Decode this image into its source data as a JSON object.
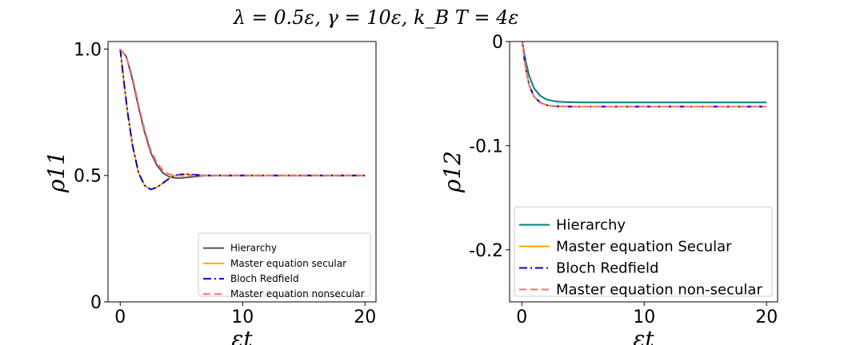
{
  "figure": {
    "suptitle": "λ = 0.5ε, γ = 10ε, k_B T = 4ε",
    "colors": {
      "hierarchy": "#008080",
      "master_secular": "#ffa500",
      "bloch_redfield": "#0000cd",
      "master_nonsecular": "#ff6e6e",
      "hierarchy_left": "#555555"
    }
  },
  "chart_data": [
    {
      "type": "line",
      "panel": "left",
      "title": "",
      "xlabel": "εt",
      "ylabel": "ρ11",
      "xlim": [
        -1,
        20.9
      ],
      "ylim": [
        0,
        1.03
      ],
      "xticks": [
        0,
        10,
        20
      ],
      "xtick_labels": [
        "0",
        "10",
        "20"
      ],
      "yticks": [
        0,
        0.5,
        1.0
      ],
      "ytick_labels": [
        "0",
        "0.5",
        "1.0"
      ],
      "grid": false,
      "legend_position": "lower-right",
      "series": [
        {
          "name": "Hierarchy",
          "style": "solid",
          "color": "#555555",
          "x": [
            0,
            0.5,
            1,
            1.5,
            2,
            2.5,
            3,
            3.5,
            4,
            4.5,
            5,
            6,
            7,
            8,
            10,
            15,
            20
          ],
          "y": [
            1.0,
            0.97,
            0.88,
            0.77,
            0.67,
            0.59,
            0.54,
            0.51,
            0.495,
            0.49,
            0.49,
            0.495,
            0.5,
            0.5,
            0.5,
            0.5,
            0.5
          ]
        },
        {
          "name": "Master equation secular",
          "style": "solid",
          "color": "#ffa500",
          "x": [
            0,
            0.3,
            0.6,
            1,
            1.5,
            2,
            2.5,
            3,
            3.5,
            4,
            4.5,
            5,
            5.5,
            6,
            7,
            8,
            10,
            15,
            20
          ],
          "y": [
            1.0,
            0.87,
            0.75,
            0.62,
            0.51,
            0.46,
            0.445,
            0.453,
            0.47,
            0.488,
            0.5,
            0.505,
            0.505,
            0.503,
            0.5,
            0.5,
            0.5,
            0.5,
            0.5
          ]
        },
        {
          "name": "Bloch Redfield",
          "style": "dashdot",
          "color": "#0000cd",
          "x": [
            0,
            0.3,
            0.6,
            1,
            1.5,
            2,
            2.5,
            3,
            3.5,
            4,
            4.5,
            5,
            5.5,
            6,
            7,
            8,
            10,
            15,
            20
          ],
          "y": [
            1.0,
            0.87,
            0.75,
            0.62,
            0.51,
            0.46,
            0.445,
            0.453,
            0.47,
            0.488,
            0.5,
            0.505,
            0.505,
            0.503,
            0.5,
            0.5,
            0.5,
            0.5,
            0.5
          ]
        },
        {
          "name": "Master equation nonsecular",
          "style": "dashed",
          "color": "#ff6e6e",
          "x": [
            0,
            0.5,
            1,
            1.5,
            2,
            2.5,
            3,
            3.5,
            4,
            4.5,
            5,
            6,
            7,
            8,
            10,
            15,
            20
          ],
          "y": [
            1.0,
            0.97,
            0.89,
            0.78,
            0.68,
            0.6,
            0.55,
            0.52,
            0.505,
            0.5,
            0.5,
            0.5,
            0.5,
            0.5,
            0.5,
            0.5,
            0.5
          ]
        }
      ]
    },
    {
      "type": "line",
      "panel": "right",
      "title": "",
      "xlabel": "εt",
      "ylabel": "ρ12",
      "xlim": [
        -1,
        20.9
      ],
      "ylim": [
        -0.25,
        0
      ],
      "xticks": [
        0,
        10,
        20
      ],
      "xtick_labels": [
        "0",
        "10",
        "20"
      ],
      "yticks": [
        0,
        -0.1,
        -0.2
      ],
      "ytick_labels": [
        "0",
        "-0.1",
        "-0.2"
      ],
      "grid": false,
      "legend_position": "lower-right",
      "series": [
        {
          "name": "Hierarchy",
          "style": "solid",
          "color": "#008080",
          "x": [
            0,
            0.3,
            0.6,
            1,
            1.5,
            2,
            2.5,
            3,
            4,
            5,
            7,
            10,
            15,
            20
          ],
          "y": [
            0.003,
            -0.018,
            -0.033,
            -0.045,
            -0.052,
            -0.0555,
            -0.057,
            -0.0578,
            -0.0583,
            -0.0585,
            -0.0585,
            -0.0585,
            -0.0585,
            -0.0585
          ]
        },
        {
          "name": "Master equation Secular",
          "style": "solid",
          "color": "#ffa500",
          "x": [
            0,
            0.3,
            0.6,
            1,
            1.5,
            2,
            2.5,
            3,
            4,
            5,
            7,
            10,
            15,
            20
          ],
          "y": [
            0.003,
            -0.025,
            -0.042,
            -0.053,
            -0.0585,
            -0.061,
            -0.062,
            -0.0623,
            -0.0625,
            -0.0625,
            -0.0625,
            -0.0625,
            -0.0625,
            -0.0625
          ]
        },
        {
          "name": "Bloch Redfield",
          "style": "dashdot",
          "color": "#0000cd",
          "x": [
            0,
            0.3,
            0.6,
            1,
            1.5,
            2,
            2.5,
            3,
            4,
            5,
            7,
            10,
            15,
            20
          ],
          "y": [
            0.003,
            -0.025,
            -0.042,
            -0.053,
            -0.0585,
            -0.061,
            -0.062,
            -0.0623,
            -0.0625,
            -0.0625,
            -0.0625,
            -0.0625,
            -0.0625,
            -0.0625
          ]
        },
        {
          "name": "Master equation non-secular",
          "style": "dashed",
          "color": "#ff6e6e",
          "x": [
            0,
            0.3,
            0.6,
            1,
            1.5,
            2,
            2.5,
            3,
            4,
            5,
            7,
            10,
            15,
            20
          ],
          "y": [
            0.003,
            -0.025,
            -0.042,
            -0.053,
            -0.0585,
            -0.061,
            -0.062,
            -0.0623,
            -0.0625,
            -0.0625,
            -0.0625,
            -0.0625,
            -0.0625,
            -0.0625
          ]
        }
      ]
    }
  ]
}
